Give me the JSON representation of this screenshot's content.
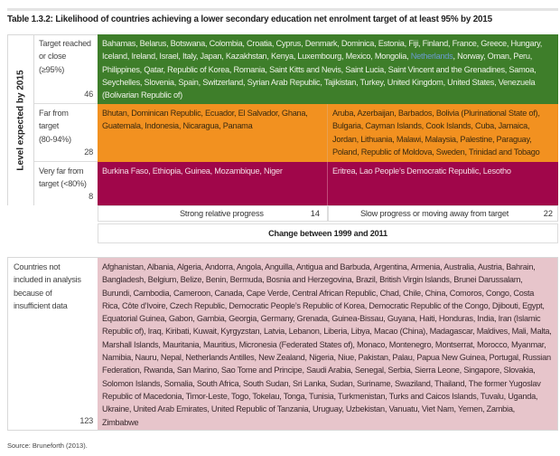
{
  "title": "Table 1.3.2: Likelihood of countries achieving a lower secondary education net enrolment target of at least 95% by 2015",
  "y_axis_label": "Level expected by 2015",
  "x_axis_label": "Change between 1999 and 2011",
  "rows": [
    {
      "label": "Target reached or close (≥95%)",
      "count": "46",
      "color": "#3e7e2a",
      "countries_before": "Bahamas, Belarus, Botswana, Colombia, Croatia, Cyprus, Denmark, Dominica, Estonia, Fiji, Finland, France, Greece, Hungary, Iceland, Ireland, Israel, Italy, Japan, Kazakhstan, Kenya, Luxembourg, Mexico, Mongolia, ",
      "highlight": "Netherlands",
      "countries_after": ", Norway, Oman, Peru, Philippines, Qatar, Republic of Korea, Romania, Saint Kitts and Nevis, Saint Lucia, Saint Vincent and the Grenadines, Samoa, Seychelles, Slovenia, Spain, Switzerland, Syrian Arab Republic, Tajikistan, Turkey, United Kingdom, United States, Venezuela (Bolivarian Republic of)"
    },
    {
      "label": "Far from target (80-94%)",
      "count": "28",
      "color": "#f29120",
      "strong": "Bhutan, Dominican Republic, Ecuador, El Salvador, Ghana, Guatemala, Indonesia, Nicaragua, Panama",
      "slow": "Aruba, Azerbaijan, Barbados, Bolivia (Plurinational State of), Bulgaria, Cayman Islands, Cook Islands, Cuba, Jamaica, Jordan, Lithuania, Malawi, Malaysia, Palestine, Paraguay, Poland, Republic of Moldova, Sweden, Trinidad and Tobago"
    },
    {
      "label": "Very far from target (<80%)",
      "count": "8",
      "color": "#a0064a",
      "strong": "Burkina Faso, Ethiopia, Guinea, Mozambique, Niger",
      "slow": "Eritrea, Lao People’s Democratic Republic, Lesotho"
    }
  ],
  "columns": [
    {
      "label": "Strong relative progress",
      "count": "14"
    },
    {
      "label": "Slow progress or moving away from target",
      "count": "22"
    }
  ],
  "excluded": {
    "label": "Countries not included in analysis because of insufficient data",
    "count": "123",
    "color": "#e7c5cb",
    "countries": "Afghanistan, Albania, Algeria, Andorra, Angola, Anguilla, Antigua and Barbuda, Argentina, Armenia, Australia, Austria, Bahrain, Bangladesh, Belgium, Belize, Benin, Bermuda, Bosnia and Herzegovina, Brazil, British Virgin Islands, Brunei Darussalam, Burundi, Cambodia, Cameroon, Canada, Cape Verde, Central African Republic, Chad, Chile, China, Comoros, Congo, Costa Rica, Côte d’Ivoire, Czech Republic, Democratic People’s Republic of Korea, Democratic Republic of the Congo, Djibouti, Egypt, Equatorial Guinea, Gabon, Gambia, Georgia, Germany, Grenada, Guinea-Bissau, Guyana, Haiti, Honduras, India, Iran (Islamic Republic of), Iraq, Kiribati, Kuwait, Kyrgyzstan, Latvia, Lebanon, Liberia, Libya, Macao (China), Madagascar, Maldives, Mali, Malta, Marshall Islands, Mauritania, Mauritius, Micronesia (Federated States of), Monaco, Montenegro, Montserrat, Morocco, Myanmar, Namibia, Nauru, Nepal, Netherlands Antilles, New Zealand, Nigeria, Niue, Pakistan, Palau, Papua New Guinea, Portugal, Russian Federation, Rwanda, San Marino, Sao Tome and Principe, Saudi Arabia, Senegal, Serbia, Sierra Leone, Singapore, Slovakia, Solomon Islands, Somalia, South Africa, South Sudan, Sri Lanka, Sudan, Suriname, Swaziland, Thailand, The former Yugoslav Republic of Macedonia, Timor-Leste, Togo, Tokelau, Tonga, Tunisia, Turkmenistan, Turks and Caicos Islands, Tuvalu, Uganda, Ukraine, United Arab Emirates, United Republic of Tanzania, Uruguay, Uzbekistan, Vanuatu, Viet Nam, Yemen, Zambia, Zimbabwe"
  },
  "source": "Source: Bruneforth (2013)."
}
